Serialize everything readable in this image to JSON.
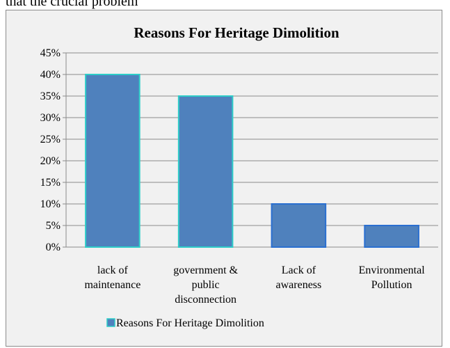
{
  "doc": {
    "line_fragment": "that the crucial problem"
  },
  "colors": {
    "bar_fill": "#4f81bd",
    "bar_edge_top": "#2ecdc8",
    "bar_edge": "#2a6fd0",
    "grid": "#8c8c8c",
    "background": "#f1f1f1"
  },
  "chart_data": {
    "type": "bar",
    "title": "Reasons For Heritage Dimolition",
    "xlabel": "",
    "ylabel": "",
    "ylim": [
      0,
      45
    ],
    "yticks": [
      "0%",
      "5%",
      "10%",
      "15%",
      "20%",
      "25%",
      "30%",
      "35%",
      "40%",
      "45%"
    ],
    "categories": [
      [
        "lack of",
        "maintenance"
      ],
      [
        "government &",
        "public",
        "disconnection"
      ],
      [
        "Lack of",
        "awareness"
      ],
      [
        "Environmental",
        "Pollution"
      ]
    ],
    "series": [
      {
        "name": "Reasons For Heritage Dimolition",
        "values": [
          40,
          35,
          10,
          5
        ]
      }
    ],
    "grid": true,
    "legend": "bottom"
  }
}
